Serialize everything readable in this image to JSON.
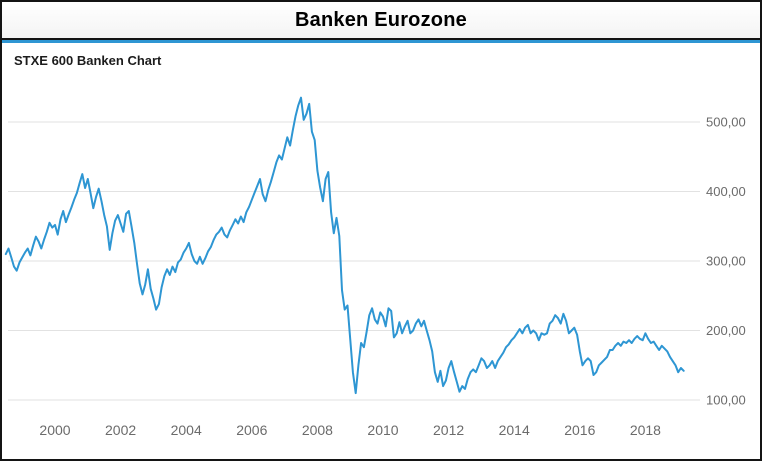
{
  "header": {
    "title": "Banken Eurozone"
  },
  "chart": {
    "subtitle": "STXE 600 Banken Chart"
  },
  "colors": {
    "line": "#2E96D3",
    "accent": "#2E96D3",
    "grid": "#e2e2e2",
    "axis_label": "#6b6b6b",
    "border": "#141414"
  },
  "chart_data": {
    "type": "line",
    "title": "Banken Eurozone",
    "subtitle": "STXE 600 Banken Chart",
    "series_name": "STXE 600 Banken",
    "x_start_year": 1998.5,
    "x_step_years": 0.0833333,
    "x_ticks": [
      2000,
      2002,
      2004,
      2006,
      2008,
      2010,
      2012,
      2014,
      2016,
      2018
    ],
    "y_ticks": [
      500,
      400,
      300,
      200,
      100
    ],
    "y_tick_labels": [
      "500,00",
      "400,00",
      "300,00",
      "200,00",
      "100,00"
    ],
    "ylim": [
      80,
      560
    ],
    "xlim": [
      1998.4,
      2019.5
    ],
    "grid": "horizontal",
    "legend": "none",
    "values": [
      310,
      318,
      305,
      292,
      286,
      298,
      305,
      312,
      318,
      308,
      322,
      335,
      328,
      318,
      331,
      342,
      355,
      348,
      352,
      338,
      360,
      372,
      356,
      367,
      377,
      388,
      398,
      412,
      425,
      405,
      418,
      398,
      376,
      392,
      404,
      386,
      366,
      350,
      316,
      340,
      358,
      366,
      354,
      342,
      368,
      372,
      350,
      326,
      296,
      268,
      252,
      266,
      288,
      260,
      246,
      230,
      238,
      262,
      278,
      288,
      280,
      292,
      284,
      298,
      302,
      312,
      318,
      326,
      310,
      300,
      296,
      306,
      296,
      304,
      314,
      320,
      330,
      338,
      342,
      348,
      338,
      334,
      344,
      352,
      360,
      354,
      364,
      356,
      370,
      378,
      388,
      398,
      408,
      418,
      396,
      386,
      402,
      414,
      428,
      442,
      452,
      446,
      462,
      478,
      466,
      488,
      508,
      524,
      535,
      503,
      512,
      526,
      486,
      474,
      430,
      406,
      386,
      418,
      428,
      370,
      340,
      362,
      336,
      258,
      230,
      236,
      188,
      140,
      110,
      150,
      182,
      176,
      198,
      222,
      232,
      216,
      210,
      226,
      220,
      206,
      232,
      228,
      190,
      196,
      212,
      196,
      206,
      214,
      196,
      200,
      210,
      216,
      206,
      214,
      200,
      186,
      170,
      140,
      126,
      142,
      120,
      128,
      146,
      156,
      140,
      126,
      112,
      120,
      116,
      130,
      140,
      144,
      140,
      150,
      160,
      156,
      146,
      150,
      156,
      146,
      156,
      162,
      168,
      176,
      180,
      186,
      190,
      196,
      202,
      196,
      204,
      208,
      196,
      200,
      196,
      186,
      196,
      194,
      196,
      210,
      214,
      222,
      218,
      210,
      224,
      214,
      196,
      200,
      204,
      194,
      170,
      150,
      156,
      160,
      156,
      136,
      140,
      150,
      154,
      158,
      162,
      172,
      172,
      178,
      182,
      178,
      184,
      182,
      186,
      182,
      188,
      192,
      188,
      186,
      196,
      188,
      182,
      184,
      178,
      172,
      178,
      174,
      170,
      162,
      156,
      150,
      140,
      146,
      142
    ]
  }
}
